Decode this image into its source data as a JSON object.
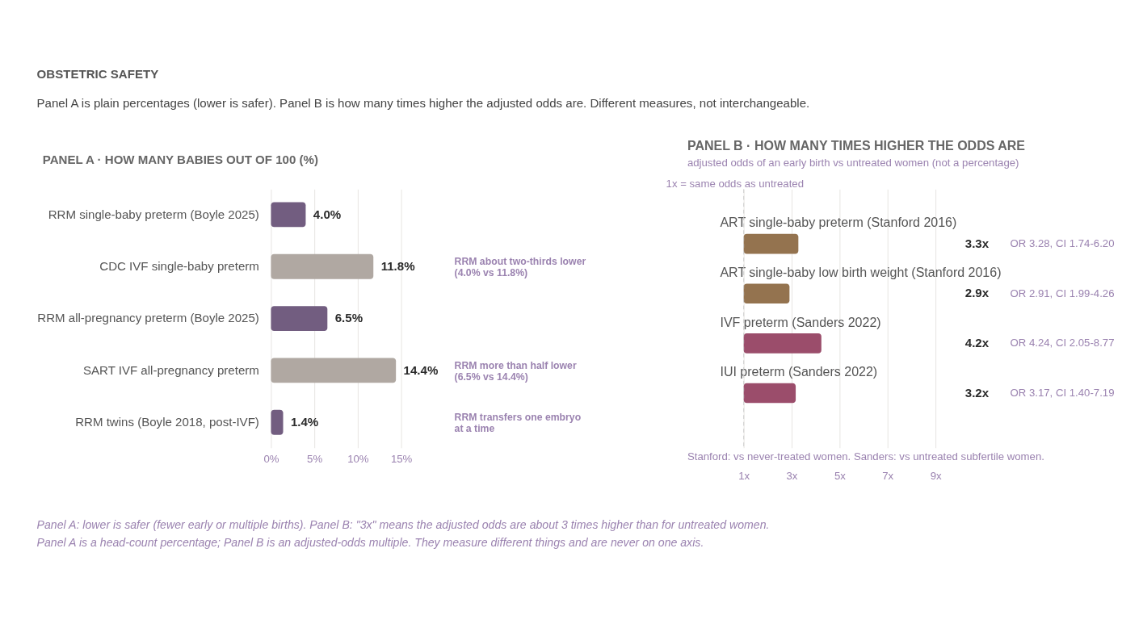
{
  "chart_data": [
    {
      "type": "bar",
      "orientation": "horizontal",
      "title": "PANEL A · HOW MANY BABIES OUT OF 100 (%)",
      "categories": [
        "RRM single-baby preterm (Boyle 2025)",
        "CDC IVF single-baby preterm",
        "RRM all-pregnancy preterm (Boyle 2025)",
        "SART IVF all-pregnancy preterm",
        "RRM twins (Boyle 2018, post-IVF)"
      ],
      "values": [
        4.0,
        11.8,
        6.5,
        14.4,
        1.4
      ],
      "colors": [
        "#725d80",
        "#b0a8a2",
        "#725d80",
        "#b0a8a2",
        "#725d80"
      ],
      "value_labels": [
        "4.0%",
        "11.8%",
        "6.5%",
        "14.4%",
        "1.4%"
      ],
      "xlim": [
        0,
        15
      ],
      "xticks": [
        {
          "value": 0,
          "label": "0%"
        },
        {
          "value": 5,
          "label": "5%"
        },
        {
          "value": 10,
          "label": "10%"
        },
        {
          "value": 15,
          "label": "15%"
        }
      ],
      "grid": "x",
      "annotations": [
        "RRM about two-thirds lower\n(4.0% vs 11.8%)",
        "RRM more than half lower\n(6.5% vs 14.4%)",
        "RRM transfers one embryo\nat a time",
        "OBSTETRIC SAFETY",
        "Panel A is plain percentages (lower is safer). Panel B is how many times higher the adjusted odds are. Different measures, not interchangeable.",
        "Panel A: lower is safer (fewer early or multiple births). Panel B: \"3x\" means the adjusted odds are about 3 times higher than for untreated women.",
        "Panel A is a head-count percentage; Panel B is an adjusted-odds multiple. They measure different things and are never on one axis."
      ]
    },
    {
      "type": "bar",
      "orientation": "horizontal",
      "title": "PANEL B · HOW MANY TIMES HIGHER THE ODDS ARE",
      "subtitle": "adjusted odds of an early birth vs untreated women (not a percentage)",
      "categories": [
        "ART single-baby preterm (Stanford 2016)",
        "ART single-baby low birth weight (Stanford 2016)",
        "IVF preterm (Sanders 2022)",
        "IUI preterm (Sanders 2022)"
      ],
      "values": [
        3.28,
        2.91,
        4.24,
        3.17
      ],
      "colors": [
        "#94734f",
        "#94734f",
        "#9b4d6b",
        "#9b4d6b"
      ],
      "value_labels": [
        "3.3x",
        "2.9x",
        "4.2x",
        "3.2x"
      ],
      "xlim": [
        1,
        9
      ],
      "xticks": [
        {
          "value": 1,
          "label": "1x"
        },
        {
          "value": 3,
          "label": "3x"
        },
        {
          "value": 5,
          "label": "5x"
        },
        {
          "value": 7,
          "label": "7x"
        },
        {
          "value": 9,
          "label": "9x"
        }
      ],
      "grid": "x",
      "ref_lines": [
        {
          "axis": "x",
          "value": 1,
          "label": "1x = same odds as untreated",
          "color": "#cccccc",
          "line_style": "dashed"
        }
      ],
      "annotations": [
        "OR 3.28, CI 1.74-6.20",
        "OR 2.91, CI 1.99-4.26",
        "OR 4.24, CI 2.05-8.77",
        "OR 3.17, CI 1.40-7.19",
        "Stanford: vs never-treated women. Sanders: vs untreated subfertile women."
      ]
    }
  ]
}
